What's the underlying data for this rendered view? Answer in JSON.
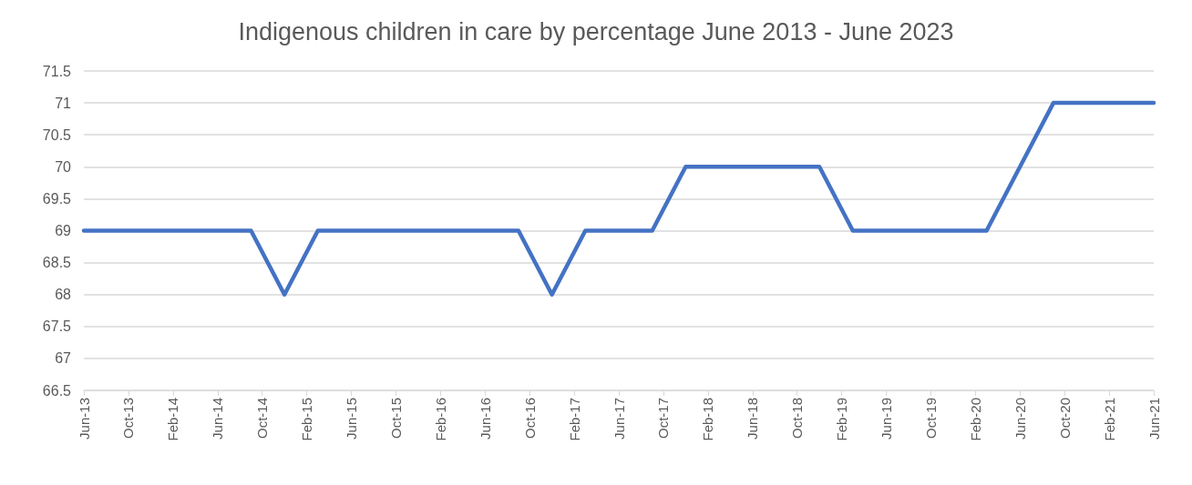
{
  "chart_data": {
    "type": "line",
    "title": "Indigenous children in care by percentage June 2013 - June 2023",
    "x": [
      "2013-06",
      "2013-09",
      "2013-12",
      "2014-03",
      "2014-06",
      "2014-09",
      "2014-12",
      "2015-03",
      "2015-06",
      "2015-09",
      "2015-12",
      "2016-03",
      "2016-06",
      "2016-09",
      "2016-12",
      "2017-03",
      "2017-06",
      "2017-09",
      "2017-12",
      "2018-03",
      "2018-06",
      "2018-09",
      "2018-12",
      "2019-03",
      "2019-06",
      "2019-09",
      "2019-12",
      "2020-03",
      "2020-06",
      "2020-09",
      "2020-12",
      "2021-03",
      "2021-06"
    ],
    "series": [
      {
        "color": "#4472c4",
        "values": [
          69,
          69,
          69,
          69,
          69,
          69,
          68,
          69,
          69,
          69,
          69,
          69,
          69,
          69,
          68,
          69,
          69,
          69,
          70,
          70,
          70,
          70,
          70,
          69,
          69,
          69,
          69,
          69,
          70,
          71,
          71,
          71,
          71
        ]
      }
    ],
    "xlim": [
      "2013-06",
      "2021-06"
    ],
    "xticks": [
      {
        "value": "2013-06",
        "label": "Jun-13"
      },
      {
        "value": "2013-10",
        "label": "Oct-13"
      },
      {
        "value": "2014-02",
        "label": "Feb-14"
      },
      {
        "value": "2014-06",
        "label": "Jun-14"
      },
      {
        "value": "2014-10",
        "label": "Oct-14"
      },
      {
        "value": "2015-02",
        "label": "Feb-15"
      },
      {
        "value": "2015-06",
        "label": "Jun-15"
      },
      {
        "value": "2015-10",
        "label": "Oct-15"
      },
      {
        "value": "2016-02",
        "label": "Feb-16"
      },
      {
        "value": "2016-06",
        "label": "Jun-16"
      },
      {
        "value": "2016-10",
        "label": "Oct-16"
      },
      {
        "value": "2017-02",
        "label": "Feb-17"
      },
      {
        "value": "2017-06",
        "label": "Jun-17"
      },
      {
        "value": "2017-10",
        "label": "Oct-17"
      },
      {
        "value": "2018-02",
        "label": "Feb-18"
      },
      {
        "value": "2018-06",
        "label": "Jun-18"
      },
      {
        "value": "2018-10",
        "label": "Oct-18"
      },
      {
        "value": "2019-02",
        "label": "Feb-19"
      },
      {
        "value": "2019-06",
        "label": "Jun-19"
      },
      {
        "value": "2019-10",
        "label": "Oct-19"
      },
      {
        "value": "2020-02",
        "label": "Feb-20"
      },
      {
        "value": "2020-06",
        "label": "Jun-20"
      },
      {
        "value": "2020-10",
        "label": "Oct-20"
      },
      {
        "value": "2021-02",
        "label": "Feb-21"
      },
      {
        "value": "2021-06",
        "label": "Jun-21"
      }
    ],
    "ylim": [
      66.5,
      71.5
    ],
    "yticks": [
      66.5,
      67,
      67.5,
      68,
      68.5,
      69,
      69.5,
      70,
      70.5,
      71,
      71.5
    ],
    "grid": "y",
    "marker": "none",
    "line_style": "solid"
  }
}
